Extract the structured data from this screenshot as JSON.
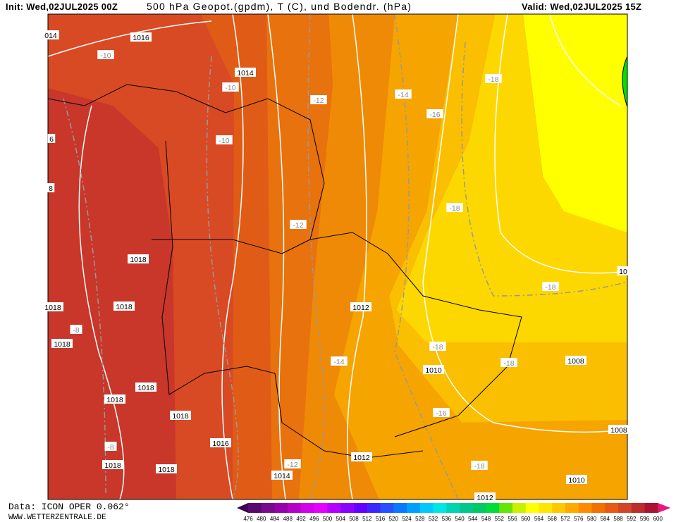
{
  "header": {
    "init": "Init: Wed,02JUL2025 00Z",
    "title": "500 hPa Geopot.(gpdm), T (C), und Bodendr. (hPa)",
    "valid": "Valid: Wed,02JUL2025 15Z"
  },
  "footer": {
    "data": "Data: ICON OPER 0.062°",
    "site": "WWW.WETTERZENTRALE.DE"
  },
  "map_labels": [
    "014",
    "1016",
    "-10",
    "1014",
    "-10",
    "-12",
    "-14",
    "-18",
    "-16",
    "6",
    "-10",
    "8",
    "-18",
    "-12",
    "1018",
    "1018",
    "1018",
    "1012",
    "-18",
    "10",
    "-8",
    "1018",
    "-18",
    "-14",
    "1010",
    "-18",
    "1008",
    "1018",
    "1018",
    "1018",
    "-16",
    "1016",
    "1008",
    "-8",
    "1018",
    "1018",
    "-12",
    "1012",
    "-18",
    "1014",
    "1010",
    "1012"
  ],
  "colorbar": {
    "labels": [
      476,
      480,
      484,
      488,
      492,
      496,
      500,
      504,
      508,
      512,
      516,
      520,
      524,
      528,
      532,
      536,
      540,
      544,
      548,
      552,
      556,
      560,
      564,
      568,
      572,
      576,
      580,
      584,
      588,
      592,
      596,
      600
    ],
    "colors": [
      "#3c0050",
      "#5a0a6e",
      "#780a8c",
      "#9600aa",
      "#b400c8",
      "#d200e6",
      "#e600ff",
      "#b400ff",
      "#8c00ff",
      "#6400ff",
      "#3c28ff",
      "#2850ff",
      "#0a78ff",
      "#00a0ff",
      "#00c8ff",
      "#00e6e6",
      "#00d2b4",
      "#00c88c",
      "#00c864",
      "#00dc3c",
      "#64e600",
      "#c8f000",
      "#ffff00",
      "#ffe600",
      "#ffc800",
      "#ffaa00",
      "#ff8c00",
      "#f07000",
      "#e65a14",
      "#d24628",
      "#be2d2d",
      "#aa1432",
      "#e6197a"
    ]
  }
}
